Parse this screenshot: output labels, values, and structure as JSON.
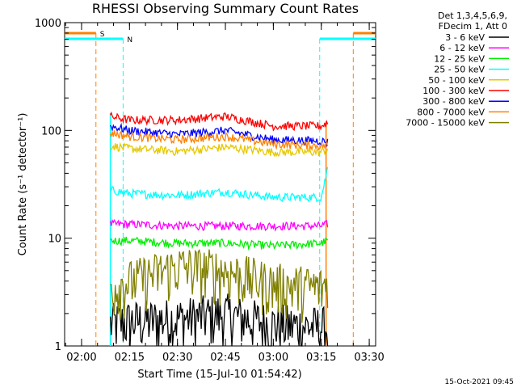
{
  "chart_data": {
    "type": "line",
    "title": "RHESSI Observing Summary Count Rates",
    "xlabel": "Start Time (15-Jul-10 01:54:42)",
    "ylabel": "Count Rate (s⁻¹ detector⁻¹)",
    "y_scale": "log",
    "ylim": [
      1,
      1000
    ],
    "xlim": [
      "01:54:42",
      "03:32:00"
    ],
    "x_ticks": [
      "02:00",
      "02:15",
      "02:30",
      "02:45",
      "03:00",
      "03:15",
      "03:30"
    ],
    "y_ticks": [
      "1",
      "10",
      "100",
      "1000"
    ],
    "legend_header": [
      "Det 1,3,4,5,6,9,",
      "FDecim 1, Att 0"
    ],
    "legend_placement": "right, outside plot",
    "footer_timestamp": "15-Oct-2021 09:45",
    "flag_labels": {
      "saa": "S",
      "night": "N"
    },
    "intervals": {
      "saa": [
        [
          "01:54:42",
          "02:04:30"
        ],
        [
          "03:25:00",
          "03:32:00"
        ]
      ],
      "night": [
        [
          "01:54:42",
          "02:13:00"
        ],
        [
          "03:14:30",
          "03:32:00"
        ]
      ],
      "data": [
        "02:09:00",
        "03:17:00"
      ]
    },
    "series": [
      {
        "name": "3 - 6 keV",
        "color": "#000000",
        "x": [
          "02:09",
          "02:15",
          "02:30",
          "02:45",
          "03:00",
          "03:15",
          "03:17"
        ],
        "y": [
          1.6,
          1.7,
          1.8,
          2.0,
          1.6,
          1.5,
          1.5
        ]
      },
      {
        "name": "6 - 12 keV",
        "color": "#ff00ff",
        "x": [
          "02:09",
          "02:15",
          "02:30",
          "02:45",
          "03:00",
          "03:15",
          "03:17"
        ],
        "y": [
          13.5,
          13.5,
          13.0,
          13.0,
          13.0,
          13.0,
          13.5
        ]
      },
      {
        "name": "12 - 25 keV",
        "color": "#00ee00",
        "x": [
          "02:09",
          "02:15",
          "02:30",
          "02:45",
          "03:00",
          "03:15",
          "03:17"
        ],
        "y": [
          9.5,
          9.5,
          9.0,
          9.0,
          8.5,
          9.0,
          9.5
        ]
      },
      {
        "name": "25 - 50 keV",
        "color": "#00ffff",
        "x": [
          "02:09",
          "02:15",
          "02:30",
          "02:45",
          "03:00",
          "03:15",
          "03:17"
        ],
        "y": [
          28,
          26,
          25,
          27,
          24,
          24,
          45
        ]
      },
      {
        "name": "50 - 100 keV",
        "color": "#e6c800",
        "x": [
          "02:09",
          "02:15",
          "02:30",
          "02:45",
          "03:00",
          "03:15",
          "03:17"
        ],
        "y": [
          72,
          68,
          64,
          70,
          63,
          63,
          68
        ]
      },
      {
        "name": "100 - 300 keV",
        "color": "#ff0000",
        "x": [
          "02:09",
          "02:15",
          "02:30",
          "02:45",
          "03:00",
          "03:15",
          "03:17"
        ],
        "y": [
          135,
          125,
          125,
          135,
          110,
          110,
          118
        ]
      },
      {
        "name": "300 - 800 keV",
        "color": "#0000ff",
        "x": [
          "02:09",
          "02:15",
          "02:30",
          "02:45",
          "03:00",
          "03:15",
          "03:17"
        ],
        "y": [
          110,
          100,
          92,
          100,
          82,
          80,
          78
        ]
      },
      {
        "name": "800 - 7000 keV",
        "color": "#ff8000",
        "x": [
          "02:09",
          "02:15",
          "02:30",
          "02:45",
          "03:00",
          "03:15",
          "03:17"
        ],
        "y": [
          95,
          88,
          82,
          88,
          75,
          72,
          72
        ]
      },
      {
        "name": "7000 - 15000 keV",
        "color": "#808000",
        "x": [
          "02:09",
          "02:15",
          "02:30",
          "02:45",
          "03:00",
          "03:15",
          "03:17"
        ],
        "y": [
          3.5,
          4.0,
          5.5,
          5.0,
          3.8,
          3.5,
          3.8
        ]
      }
    ]
  }
}
